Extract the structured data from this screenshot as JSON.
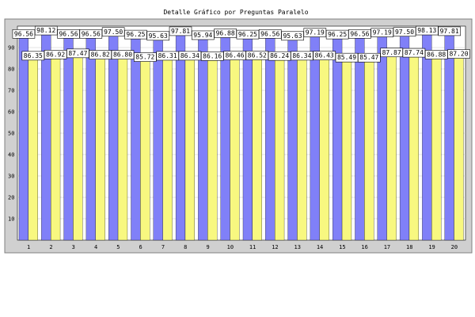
{
  "chart_data": {
    "type": "bar",
    "title": "Detalle Gráfico por Preguntas Paralelo",
    "xlabel": "",
    "ylabel": "",
    "ylim": [
      0,
      100
    ],
    "yticks": [
      10,
      20,
      30,
      40,
      50,
      60,
      70,
      80,
      90
    ],
    "grid": true,
    "legend": "none",
    "categories": [
      "1",
      "2",
      "3",
      "4",
      "5",
      "6",
      "7",
      "8",
      "9",
      "10",
      "11",
      "12",
      "13",
      "14",
      "15",
      "16",
      "17",
      "18",
      "19",
      "20"
    ],
    "series": [
      {
        "color": "#8080f8",
        "values": [
          96.56,
          98.12,
          96.56,
          96.56,
          97.5,
          96.25,
          95.63,
          97.81,
          95.94,
          96.88,
          96.25,
          96.56,
          95.63,
          97.19,
          96.25,
          96.56,
          97.19,
          97.5,
          98.13,
          97.81
        ],
        "labels": [
          "96.56",
          "98.12",
          "96.56",
          "96.56",
          "97.50",
          "96.25",
          "95.63",
          "97.81",
          "95.94",
          "96.88",
          "96.25",
          "96.56",
          "95.63",
          "97.19",
          "96.25",
          "96.56",
          "97.19",
          "97.50",
          "98.13",
          "97.81"
        ]
      },
      {
        "color": "#f8f880",
        "values": [
          86.35,
          86.92,
          87.47,
          86.82,
          86.8,
          85.72,
          86.31,
          86.34,
          86.16,
          86.46,
          86.52,
          86.24,
          86.34,
          86.43,
          85.49,
          85.47,
          87.87,
          87.74,
          86.88,
          87.2
        ],
        "labels": [
          "86.35",
          "86.92",
          "87.47",
          "86.82",
          "86.80",
          "85.72",
          "86.31",
          "86.34",
          "86.16",
          "86.46",
          "86.52",
          "86.24",
          "86.34",
          "86.43",
          "85.49",
          "85.47",
          "87.87",
          "87.74",
          "86.88",
          "87.20"
        ]
      }
    ],
    "colors": {
      "background": "#ffffff",
      "plot_frame": "#d0d0d0",
      "plot_area": "#ffffff",
      "grid": "#c8c8c8",
      "bar_edge": "#000000",
      "label_box": "#ffffff"
    }
  }
}
